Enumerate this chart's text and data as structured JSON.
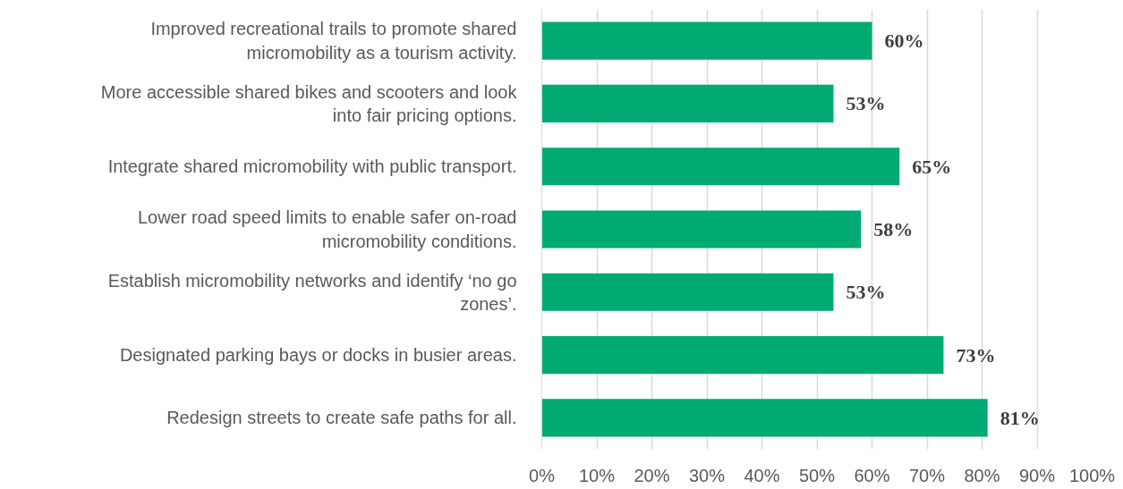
{
  "chart_data": {
    "type": "bar",
    "orientation": "horizontal",
    "categories": [
      "Improved recreational trails to promote shared micromobility as a tourism activity.",
      "More accessible shared bikes and scooters and look into fair pricing options.",
      "Integrate shared micromobility with public transport.",
      "Lower road speed limits to enable safer on-road micromobility conditions.",
      "Establish micromobility networks and identify ‘no go zones’.",
      "Designated parking bays or docks in busier areas.",
      "Redesign streets to create safe paths for all."
    ],
    "values": [
      60,
      53,
      65,
      58,
      53,
      73,
      81
    ],
    "color": "#00aa72",
    "value_labels": [
      "60%",
      "53%",
      "65%",
      "58%",
      "53%",
      "73%",
      "81%"
    ],
    "xlim": [
      0,
      100
    ],
    "xticks": [
      {
        "value": 0,
        "label": "0%"
      },
      {
        "value": 10,
        "label": "10%"
      },
      {
        "value": 20,
        "label": "20%"
      },
      {
        "value": 30,
        "label": "30%"
      },
      {
        "value": 40,
        "label": "40%"
      },
      {
        "value": 50,
        "label": "50%"
      },
      {
        "value": 60,
        "label": "60%"
      },
      {
        "value": 70,
        "label": "70%"
      },
      {
        "value": 80,
        "label": "80%"
      },
      {
        "value": 90,
        "label": "90%"
      },
      {
        "value": 100,
        "label": "100%"
      }
    ],
    "grid": "x"
  }
}
